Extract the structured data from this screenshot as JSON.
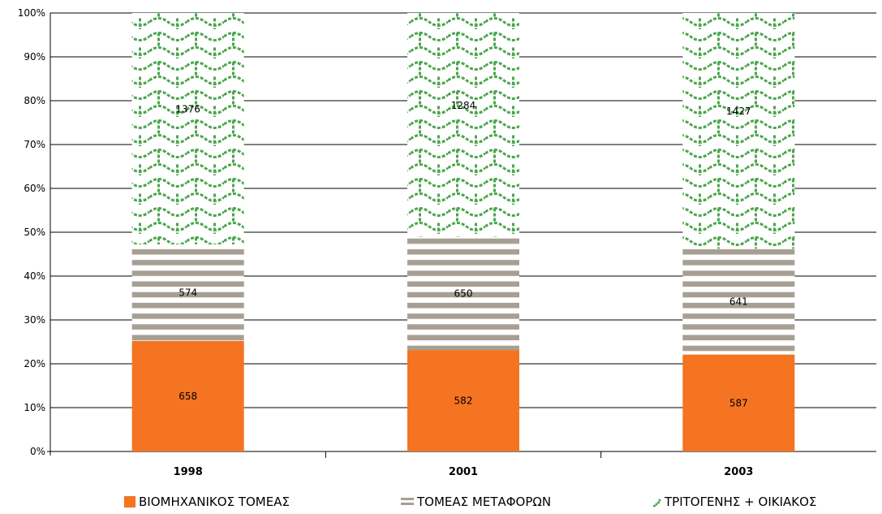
{
  "chart_data": {
    "type": "bar",
    "stacked": "percent",
    "categories": [
      "1998",
      "2001",
      "2003"
    ],
    "series": [
      {
        "name": "ΒΙΟΜΗΧΑΝΙΚΟΣ ΤΟΜΕΑΣ",
        "values": [
          658,
          582,
          587
        ],
        "color": "#f47421",
        "fill": "solid"
      },
      {
        "name": "ΤΟΜΕΑΣ ΜΕΤΑΦΟΡΩΝ",
        "values": [
          574,
          650,
          641
        ],
        "color": "#a79f93",
        "fill": "horizontal-stripes"
      },
      {
        "name": "ΤΡΙΤΟΓΕΝΗΣ + ΟΙΚΙΑΚΟΣ",
        "values": [
          1376,
          1284,
          1427
        ],
        "color": "#4ca64c",
        "fill": "wave-pattern"
      }
    ],
    "yticks": [
      "0%",
      "10%",
      "20%",
      "30%",
      "40%",
      "50%",
      "60%",
      "70%",
      "80%",
      "90%",
      "100%"
    ],
    "ylim": [
      0,
      100
    ],
    "grid": true,
    "legend_position": "bottom"
  }
}
